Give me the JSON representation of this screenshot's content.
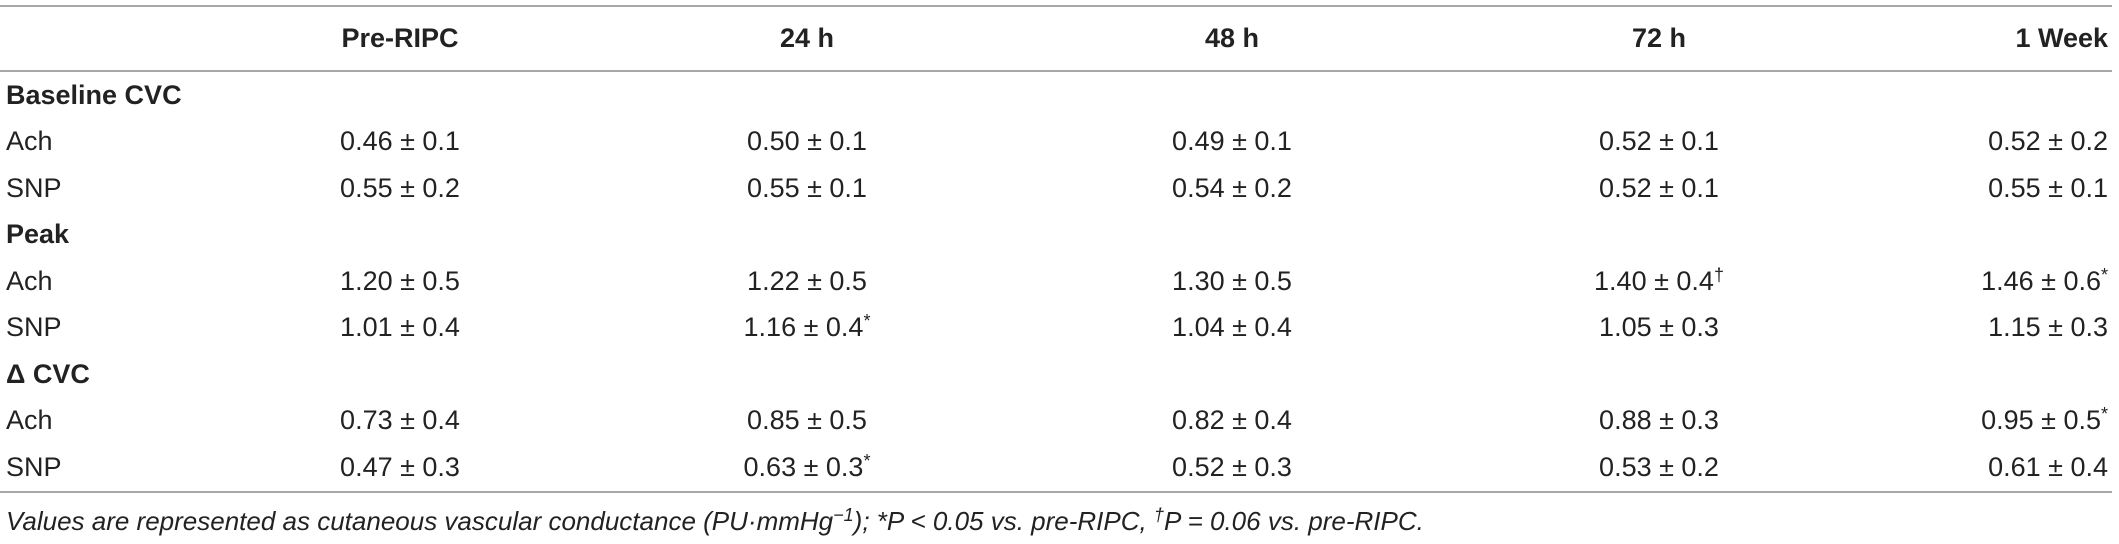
{
  "table": {
    "header": [
      "",
      "Pre-RIPC",
      "24 h",
      "48 h",
      "72 h",
      "1 Week"
    ],
    "sections": [
      {
        "title": "Baseline CVC",
        "rows": [
          {
            "label": "Ach",
            "cells": [
              "0.46 ± 0.1",
              "0.50 ± 0.1",
              "0.49 ± 0.1",
              "0.52 ± 0.1",
              "0.52 ± 0.2"
            ]
          },
          {
            "label": "SNP",
            "cells": [
              "0.55 ± 0.2",
              "0.55 ± 0.1",
              "0.54 ± 0.2",
              "0.52 ± 0.1",
              "0.55 ± 0.1"
            ]
          }
        ]
      },
      {
        "title": "Peak",
        "rows": [
          {
            "label": "Ach",
            "cells": [
              "1.20 ± 0.5",
              "1.22 ± 0.5",
              "1.30 ± 0.5",
              {
                "text": "1.40 ± 0.4",
                "sup": "†"
              },
              {
                "text": "1.46 ± 0.6",
                "sup": "*"
              }
            ]
          },
          {
            "label": "SNP",
            "cells": [
              "1.01 ± 0.4",
              {
                "text": "1.16 ± 0.4",
                "sup": "*"
              },
              "1.04 ± 0.4",
              "1.05 ± 0.3",
              "1.15 ± 0.3"
            ]
          }
        ]
      },
      {
        "title": "Δ CVC",
        "rows": [
          {
            "label": "Ach",
            "cells": [
              "0.73 ± 0.4",
              "0.85 ± 0.5",
              "0.82 ± 0.4",
              "0.88 ± 0.3",
              {
                "text": "0.95 ± 0.5",
                "sup": "*"
              }
            ]
          },
          {
            "label": "SNP",
            "cells": [
              "0.47 ± 0.3",
              {
                "text": "0.63 ± 0.3",
                "sup": "*"
              },
              "0.52 ± 0.3",
              "0.53 ± 0.2",
              "0.61 ± 0.4"
            ]
          }
        ]
      }
    ],
    "footnote": [
      "Values are represented as cutaneous vascular conductance (PU·mmHg",
      {
        "sup": "−1"
      },
      "); *P < 0.05 vs. pre-RIPC, ",
      {
        "sup": "†"
      },
      "P = 0.06 vs. pre-RIPC."
    ]
  }
}
